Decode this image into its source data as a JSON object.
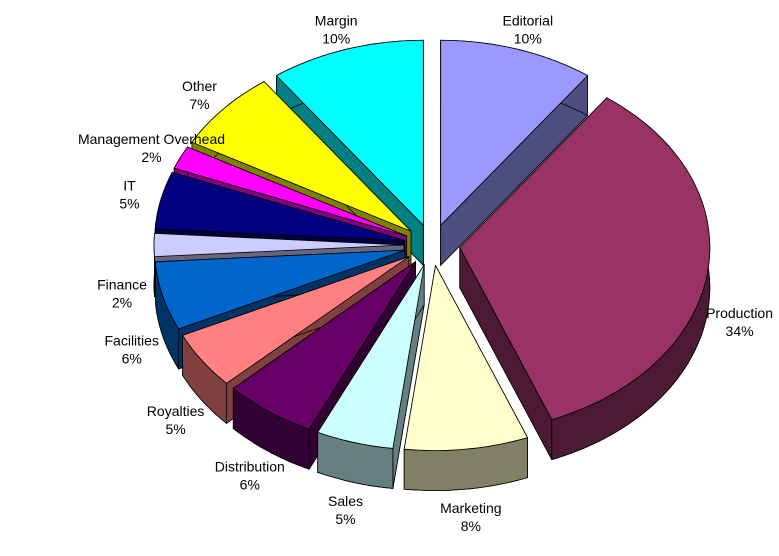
{
  "chart_data": {
    "type": "pie",
    "categories": [
      "Editorial",
      "Production",
      "Marketing",
      "Sales",
      "Distribution",
      "Royalties",
      "Facilities",
      "Finance",
      "IT",
      "Management Overhead",
      "Other",
      "Margin"
    ],
    "values": [
      10,
      34,
      8,
      5,
      6,
      5,
      6,
      2,
      5,
      2,
      7,
      10
    ],
    "value_labels": [
      "10%",
      "34%",
      "8%",
      "5%",
      "6%",
      "5%",
      "6%",
      "2%",
      "5%",
      "2%",
      "7%",
      "10%"
    ],
    "colors": [
      "#9999ff",
      "#993366",
      "#ffffcc",
      "#ccffff",
      "#660066",
      "#ff8080",
      "#0066cc",
      "#ccccff",
      "#000080",
      "#ff00ff",
      "#ffff00",
      "#00ffff"
    ]
  }
}
